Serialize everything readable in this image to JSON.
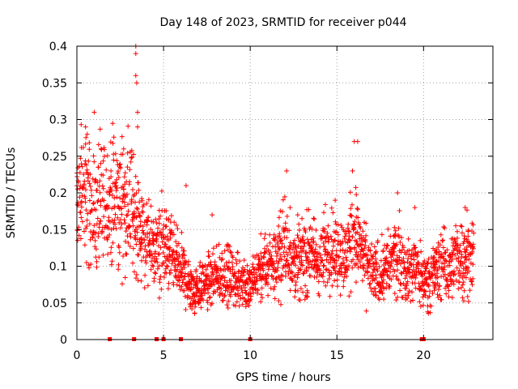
{
  "chart_data": {
    "type": "scatter",
    "title": "Day 148 of 2023, SRMTID for receiver p044",
    "xlabel": "GPS time / hours",
    "ylabel": "SRMTID / TECUs",
    "xlim": [
      0,
      24
    ],
    "ylim": [
      0,
      0.4
    ],
    "xticks": [
      0,
      5,
      10,
      15,
      20
    ],
    "xtick_labels": [
      "0",
      "5",
      "10",
      "15",
      "20"
    ],
    "yticks": [
      0,
      0.05,
      0.1,
      0.15,
      0.2,
      0.25,
      0.3,
      0.35,
      0.4
    ],
    "ytick_labels": [
      "0",
      "0.05",
      "0.1",
      "0.15",
      "0.2",
      "0.25",
      "0.3",
      "0.35",
      "0.4"
    ],
    "grid": true,
    "marker": "plus",
    "color": "#ff0000",
    "series": [
      {
        "name": "SRMTID",
        "trend": [
          [
            0.0,
            0.19
          ],
          [
            0.5,
            0.2
          ],
          [
            1.0,
            0.17
          ],
          [
            1.5,
            0.18
          ],
          [
            2.0,
            0.19
          ],
          [
            2.5,
            0.18
          ],
          [
            3.0,
            0.19
          ],
          [
            3.5,
            0.16
          ],
          [
            4.0,
            0.13
          ],
          [
            4.5,
            0.12
          ],
          [
            5.0,
            0.13
          ],
          [
            5.5,
            0.11
          ],
          [
            6.0,
            0.1
          ],
          [
            6.5,
            0.07
          ],
          [
            7.0,
            0.07
          ],
          [
            7.5,
            0.08
          ],
          [
            8.0,
            0.08
          ],
          [
            8.5,
            0.09
          ],
          [
            9.0,
            0.08
          ],
          [
            9.5,
            0.08
          ],
          [
            10.0,
            0.07
          ],
          [
            10.5,
            0.09
          ],
          [
            11.0,
            0.1
          ],
          [
            11.5,
            0.11
          ],
          [
            12.0,
            0.13
          ],
          [
            12.5,
            0.11
          ],
          [
            13.0,
            0.11
          ],
          [
            13.5,
            0.12
          ],
          [
            14.0,
            0.1
          ],
          [
            14.5,
            0.13
          ],
          [
            15.0,
            0.12
          ],
          [
            15.5,
            0.11
          ],
          [
            16.0,
            0.15
          ],
          [
            16.5,
            0.11
          ],
          [
            17.0,
            0.09
          ],
          [
            17.5,
            0.09
          ],
          [
            18.0,
            0.1
          ],
          [
            18.5,
            0.12
          ],
          [
            19.0,
            0.09
          ],
          [
            19.5,
            0.1
          ],
          [
            20.0,
            0.08
          ],
          [
            20.5,
            0.09
          ],
          [
            21.0,
            0.1
          ],
          [
            21.5,
            0.1
          ],
          [
            22.0,
            0.11
          ],
          [
            22.5,
            0.12
          ],
          [
            22.9,
            0.11
          ]
        ],
        "spikes": [
          [
            3.4,
            0.4
          ],
          [
            3.4,
            0.39
          ],
          [
            3.4,
            0.36
          ],
          [
            3.45,
            0.35
          ],
          [
            3.5,
            0.31
          ],
          [
            3.5,
            0.29
          ],
          [
            1.0,
            0.31
          ],
          [
            0.5,
            0.29
          ],
          [
            0.6,
            0.28
          ],
          [
            16.0,
            0.27
          ],
          [
            16.2,
            0.27
          ],
          [
            2.7,
            0.26
          ],
          [
            15.9,
            0.23
          ],
          [
            12.1,
            0.23
          ],
          [
            18.5,
            0.2
          ],
          [
            14.9,
            0.19
          ],
          [
            6.3,
            0.21
          ],
          [
            7.8,
            0.17
          ],
          [
            12.3,
            0.18
          ],
          [
            19.5,
            0.18
          ],
          [
            22.4,
            0.18
          ]
        ]
      }
    ],
    "gaps_hours": [
      1.9,
      3.3,
      4.6,
      5.0,
      6.0,
      10.0,
      19.9,
      20.0
    ]
  }
}
